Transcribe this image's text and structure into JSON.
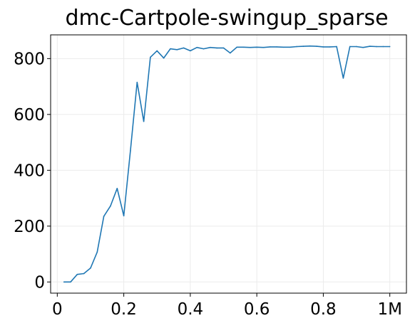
{
  "chart_data": {
    "type": "line",
    "title": "dmc-Cartpole-swingup_sparse",
    "xlabel": "",
    "ylabel": "",
    "xlim": [
      -0.02,
      1.05
    ],
    "ylim": [
      -40,
      885
    ],
    "x_ticks": [
      {
        "value": 0,
        "label": "0"
      },
      {
        "value": 0.2,
        "label": "0.2"
      },
      {
        "value": 0.4,
        "label": "0.4"
      },
      {
        "value": 0.6,
        "label": "0.6"
      },
      {
        "value": 0.8,
        "label": "0.8"
      },
      {
        "value": 1.0,
        "label": "1M"
      }
    ],
    "y_ticks": [
      {
        "value": 0,
        "label": "0"
      },
      {
        "value": 200,
        "label": "200"
      },
      {
        "value": 400,
        "label": "400"
      },
      {
        "value": 600,
        "label": "600"
      },
      {
        "value": 800,
        "label": "800"
      }
    ],
    "grid": true,
    "legend": "none",
    "series": [
      {
        "color": "#1f77b4",
        "x": [
          0.02,
          0.04,
          0.06,
          0.08,
          0.1,
          0.12,
          0.14,
          0.16,
          0.18,
          0.2,
          0.22,
          0.24,
          0.26,
          0.28,
          0.3,
          0.32,
          0.34,
          0.36,
          0.38,
          0.4,
          0.42,
          0.44,
          0.46,
          0.48,
          0.5,
          0.52,
          0.54,
          0.56,
          0.58,
          0.6,
          0.62,
          0.64,
          0.66,
          0.68,
          0.7,
          0.72,
          0.74,
          0.76,
          0.78,
          0.8,
          0.82,
          0.84,
          0.86,
          0.88,
          0.9,
          0.92,
          0.94,
          0.96,
          0.98,
          1.0
        ],
        "y": [
          0,
          0,
          27,
          30,
          50,
          107,
          235,
          272,
          335,
          237,
          470,
          715,
          575,
          805,
          828,
          802,
          835,
          832,
          838,
          828,
          840,
          835,
          840,
          838,
          838,
          820,
          841,
          841,
          840,
          841,
          840,
          842,
          842,
          841,
          841,
          843,
          844,
          845,
          844,
          842,
          842,
          843,
          730,
          843,
          843,
          840,
          844,
          843,
          843,
          843
        ]
      }
    ]
  }
}
